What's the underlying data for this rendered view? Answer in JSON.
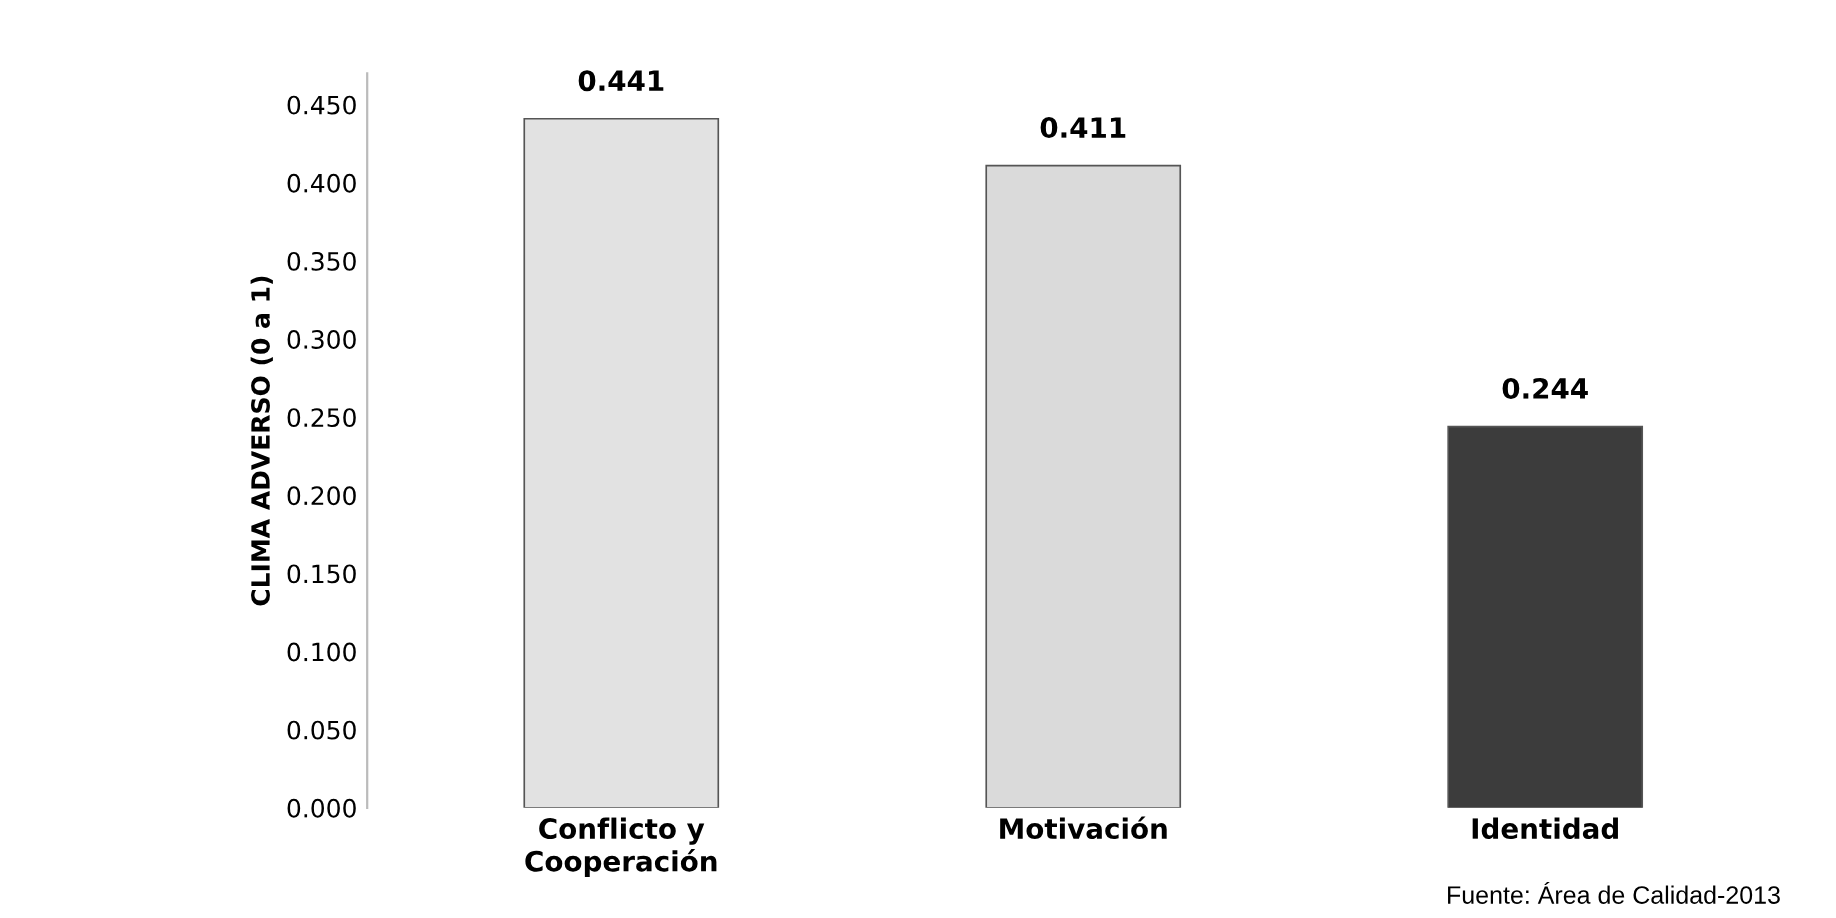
{
  "chart_data": {
    "type": "bar",
    "categories": [
      "Conflicto y\nCooperación",
      "Motivación",
      "Identidad"
    ],
    "values": [
      0.441,
      0.411,
      0.244
    ],
    "colors": [
      "#e2e2e2",
      "#dadada",
      "#3c3c3c"
    ],
    "ylabel": "CLIMA ADVERSO (0 a 1)",
    "ylim": [
      0,
      0.47
    ],
    "yticks": [
      {
        "value": 0,
        "label": "0.000"
      },
      {
        "value": 0.05,
        "label": "0.050"
      },
      {
        "value": 0.1,
        "label": "0.100"
      },
      {
        "value": 0.15,
        "label": "0.150"
      },
      {
        "value": 0.2,
        "label": "0.200"
      },
      {
        "value": 0.25,
        "label": "0.250"
      },
      {
        "value": 0.3,
        "label": "0.300"
      },
      {
        "value": 0.35,
        "label": "0.350"
      },
      {
        "value": 0.4,
        "label": "0.400"
      },
      {
        "value": 0.45,
        "label": "0.450"
      }
    ],
    "data_labels": true,
    "grid": false,
    "legend": false,
    "annotations": [
      "Fuente: Área de Calidad-2013"
    ]
  }
}
